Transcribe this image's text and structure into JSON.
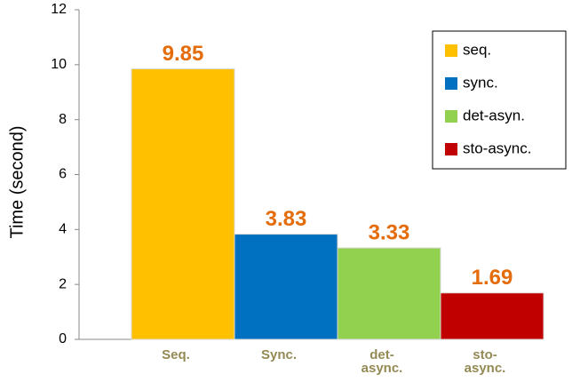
{
  "chart_data": {
    "type": "bar",
    "y_label": "Time (second)",
    "categories": [
      "Seq.",
      "Sync.",
      "det-async.",
      "sto-async."
    ],
    "series": [
      {
        "name": "seq.",
        "color": "#ffc000",
        "values": [
          9.85,
          null,
          null,
          null
        ]
      },
      {
        "name": "sync.",
        "color": "#0070c0",
        "values": [
          null,
          3.83,
          null,
          null
        ]
      },
      {
        "name": "det-asyn.",
        "color": "#92d050",
        "values": [
          null,
          null,
          3.33,
          null
        ]
      },
      {
        "name": "sto-async.",
        "color": "#c00000",
        "values": [
          null,
          null,
          null,
          1.69
        ]
      }
    ],
    "ylim": [
      0,
      12
    ],
    "yticks": [
      0,
      2,
      4,
      6,
      8,
      10,
      12
    ],
    "grid": false,
    "legend": "top-right"
  }
}
